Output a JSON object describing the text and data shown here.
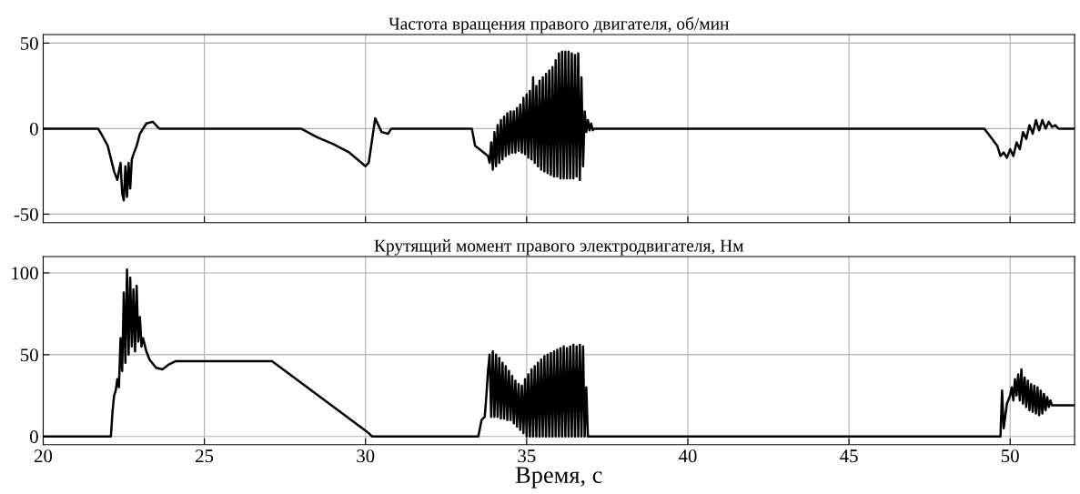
{
  "chart_data": [
    {
      "type": "line",
      "title": "Частота вращения правого двигателя, об/мин",
      "xlim": [
        20,
        52
      ],
      "xticks": [
        20,
        25,
        30,
        35,
        40,
        45,
        50
      ],
      "ylim": [
        -55,
        55
      ],
      "yticks": [
        -50,
        0,
        50
      ],
      "grid": true,
      "tick_labels": "y",
      "line_style": "solid",
      "marker": "none",
      "x": [
        20,
        21.7,
        21.8,
        22.0,
        22.2,
        22.3,
        22.4,
        22.45,
        22.5,
        22.55,
        22.6,
        22.65,
        22.7,
        22.75,
        22.8,
        22.9,
        23.0,
        23.2,
        23.4,
        23.6,
        28.0,
        28.5,
        29.0,
        29.5,
        30.0,
        30.1,
        30.3,
        30.5,
        30.7,
        30.8,
        33.3,
        33.35,
        33.4,
        33.6,
        33.8,
        33.85,
        33.9,
        33.95,
        34.0,
        34.05,
        34.1,
        34.15,
        34.2,
        34.25,
        34.3,
        34.35,
        34.4,
        34.45,
        34.5,
        34.55,
        34.6,
        34.65,
        34.7,
        34.75,
        34.8,
        34.85,
        34.9,
        34.95,
        35.0,
        35.05,
        35.1,
        35.15,
        35.2,
        35.25,
        35.3,
        35.35,
        35.4,
        35.45,
        35.5,
        35.55,
        35.6,
        35.65,
        35.7,
        35.75,
        35.8,
        35.85,
        35.9,
        35.95,
        36.0,
        36.05,
        36.1,
        36.15,
        36.2,
        36.25,
        36.3,
        36.35,
        36.4,
        36.45,
        36.5,
        36.55,
        36.6,
        36.65,
        36.7,
        36.75,
        36.8,
        36.85,
        36.9,
        36.95,
        37.0,
        37.05,
        37.1,
        49.2,
        49.4,
        49.6,
        49.7,
        49.8,
        49.9,
        50.0,
        50.1,
        50.2,
        50.3,
        50.4,
        50.5,
        50.6,
        50.7,
        50.8,
        50.9,
        51.0,
        51.1,
        51.2,
        51.3,
        51.4,
        51.5,
        52
      ],
      "series": [
        {
          "color": "#000000",
          "values": [
            0,
            0,
            -3,
            -10,
            -25,
            -30,
            -20,
            -38,
            -42,
            -22,
            -40,
            -20,
            -35,
            -18,
            -15,
            -10,
            -3,
            3,
            4,
            0,
            0,
            -5,
            -9,
            -14,
            -22,
            -20,
            6,
            -2,
            -3,
            0,
            0,
            -5,
            -10,
            -13,
            -16,
            -20,
            -8,
            -24,
            -2,
            -22,
            2,
            -20,
            5,
            -18,
            7,
            -16,
            9,
            -15,
            10,
            -14,
            10,
            -14,
            12,
            -13,
            14,
            -14,
            18,
            -15,
            20,
            -17,
            22,
            -18,
            30,
            -20,
            25,
            -22,
            28,
            -24,
            30,
            -25,
            32,
            -26,
            34,
            -27,
            36,
            -28,
            40,
            -28,
            44,
            -29,
            45,
            -29,
            45,
            -29,
            45,
            -29,
            44,
            -29,
            43,
            -28,
            44,
            -30,
            30,
            -22,
            10,
            -2,
            5,
            -1,
            3,
            -1,
            0,
            0,
            -5,
            -10,
            -16,
            -14,
            -17,
            -12,
            -16,
            -8,
            -12,
            -2,
            -6,
            2,
            -3,
            5,
            -1,
            5,
            0,
            4,
            1,
            2,
            0,
            0
          ]
        }
      ]
    },
    {
      "type": "line",
      "title": "Крутящий момент правого электродвигателя, Нм",
      "xlabel": "Время, с",
      "xlim": [
        20,
        52
      ],
      "xticks": [
        20,
        25,
        30,
        35,
        40,
        45,
        50
      ],
      "ylim": [
        -5,
        110
      ],
      "yticks": [
        0,
        50,
        100
      ],
      "grid": true,
      "line_style": "solid",
      "marker": "none",
      "x": [
        20,
        22.1,
        22.15,
        22.2,
        22.25,
        22.3,
        22.35,
        22.4,
        22.45,
        22.5,
        22.55,
        22.6,
        22.65,
        22.7,
        22.75,
        22.8,
        22.85,
        22.9,
        22.95,
        23.0,
        23.05,
        23.1,
        23.2,
        23.3,
        23.5,
        23.7,
        23.9,
        24.1,
        27.1,
        30.1,
        30.2,
        33.5,
        33.6,
        33.7,
        33.75,
        33.8,
        33.85,
        33.9,
        33.95,
        34.0,
        34.05,
        34.1,
        34.15,
        34.2,
        34.25,
        34.3,
        34.35,
        34.4,
        34.45,
        34.5,
        34.55,
        34.6,
        34.65,
        34.7,
        34.75,
        34.8,
        34.85,
        34.9,
        34.95,
        35.0,
        35.05,
        35.1,
        35.15,
        35.2,
        35.25,
        35.3,
        35.35,
        35.4,
        35.45,
        35.5,
        35.55,
        35.6,
        35.65,
        35.7,
        35.75,
        35.8,
        35.85,
        35.9,
        35.95,
        36.0,
        36.05,
        36.1,
        36.15,
        36.2,
        36.25,
        36.3,
        36.35,
        36.4,
        36.45,
        36.5,
        36.55,
        36.6,
        36.65,
        36.7,
        36.75,
        36.8,
        36.85,
        36.9,
        49.7,
        49.75,
        49.8,
        49.9,
        50.0,
        50.05,
        50.1,
        50.15,
        50.2,
        50.25,
        50.3,
        50.35,
        50.4,
        50.45,
        50.5,
        50.55,
        50.6,
        50.65,
        50.7,
        50.75,
        50.8,
        50.85,
        50.9,
        50.95,
        51.0,
        51.05,
        51.1,
        51.15,
        51.2,
        51.25,
        51.3,
        52
      ],
      "series": [
        {
          "color": "#000000",
          "values": [
            0,
            0,
            15,
            25,
            28,
            35,
            30,
            60,
            40,
            88,
            45,
            102,
            50,
            97,
            55,
            90,
            52,
            92,
            58,
            73,
            55,
            60,
            52,
            47,
            42,
            41,
            44,
            46,
            46,
            2,
            0,
            0,
            10,
            12,
            25,
            40,
            50,
            12,
            52,
            12,
            50,
            12,
            48,
            11,
            45,
            11,
            43,
            10,
            40,
            10,
            37,
            8,
            34,
            6,
            32,
            4,
            31,
            2,
            35,
            0,
            38,
            0,
            41,
            0,
            43,
            0,
            45,
            0,
            47,
            0,
            49,
            0,
            50,
            0,
            51,
            0,
            52,
            0,
            53,
            0,
            54,
            0,
            55,
            0,
            54,
            0,
            55,
            0,
            56,
            0,
            55,
            0,
            56,
            0,
            55,
            0,
            30,
            0,
            0,
            28,
            5,
            20,
            25,
            30,
            22,
            35,
            25,
            38,
            22,
            41,
            20,
            36,
            18,
            34,
            16,
            32,
            15,
            31,
            14,
            30,
            13,
            28,
            14,
            26,
            16,
            24,
            18,
            22,
            19,
            19
          ]
        }
      ]
    }
  ]
}
